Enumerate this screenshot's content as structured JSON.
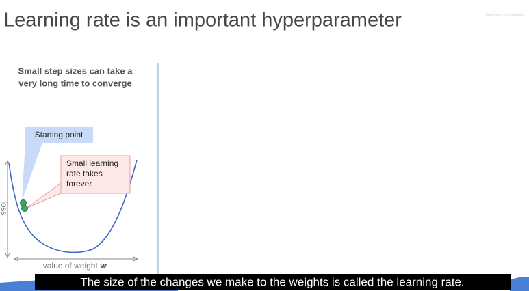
{
  "slide": {
    "title": "Learning rate is an important hyperparameter",
    "watermark": "Proprietary + Confidential",
    "panel": {
      "heading": [
        "Small step sizes can take a",
        "very long time to converge"
      ],
      "callout_start": "Starting point",
      "callout_small": [
        "Small learning",
        "rate takes",
        "forever"
      ],
      "y_axis_label": "loss",
      "x_axis_label": {
        "text": "value of weight",
        "symbol": "w",
        "subscript": "i"
      }
    }
  },
  "caption": "The size of the changes we make to the weights is called the learning rate."
}
